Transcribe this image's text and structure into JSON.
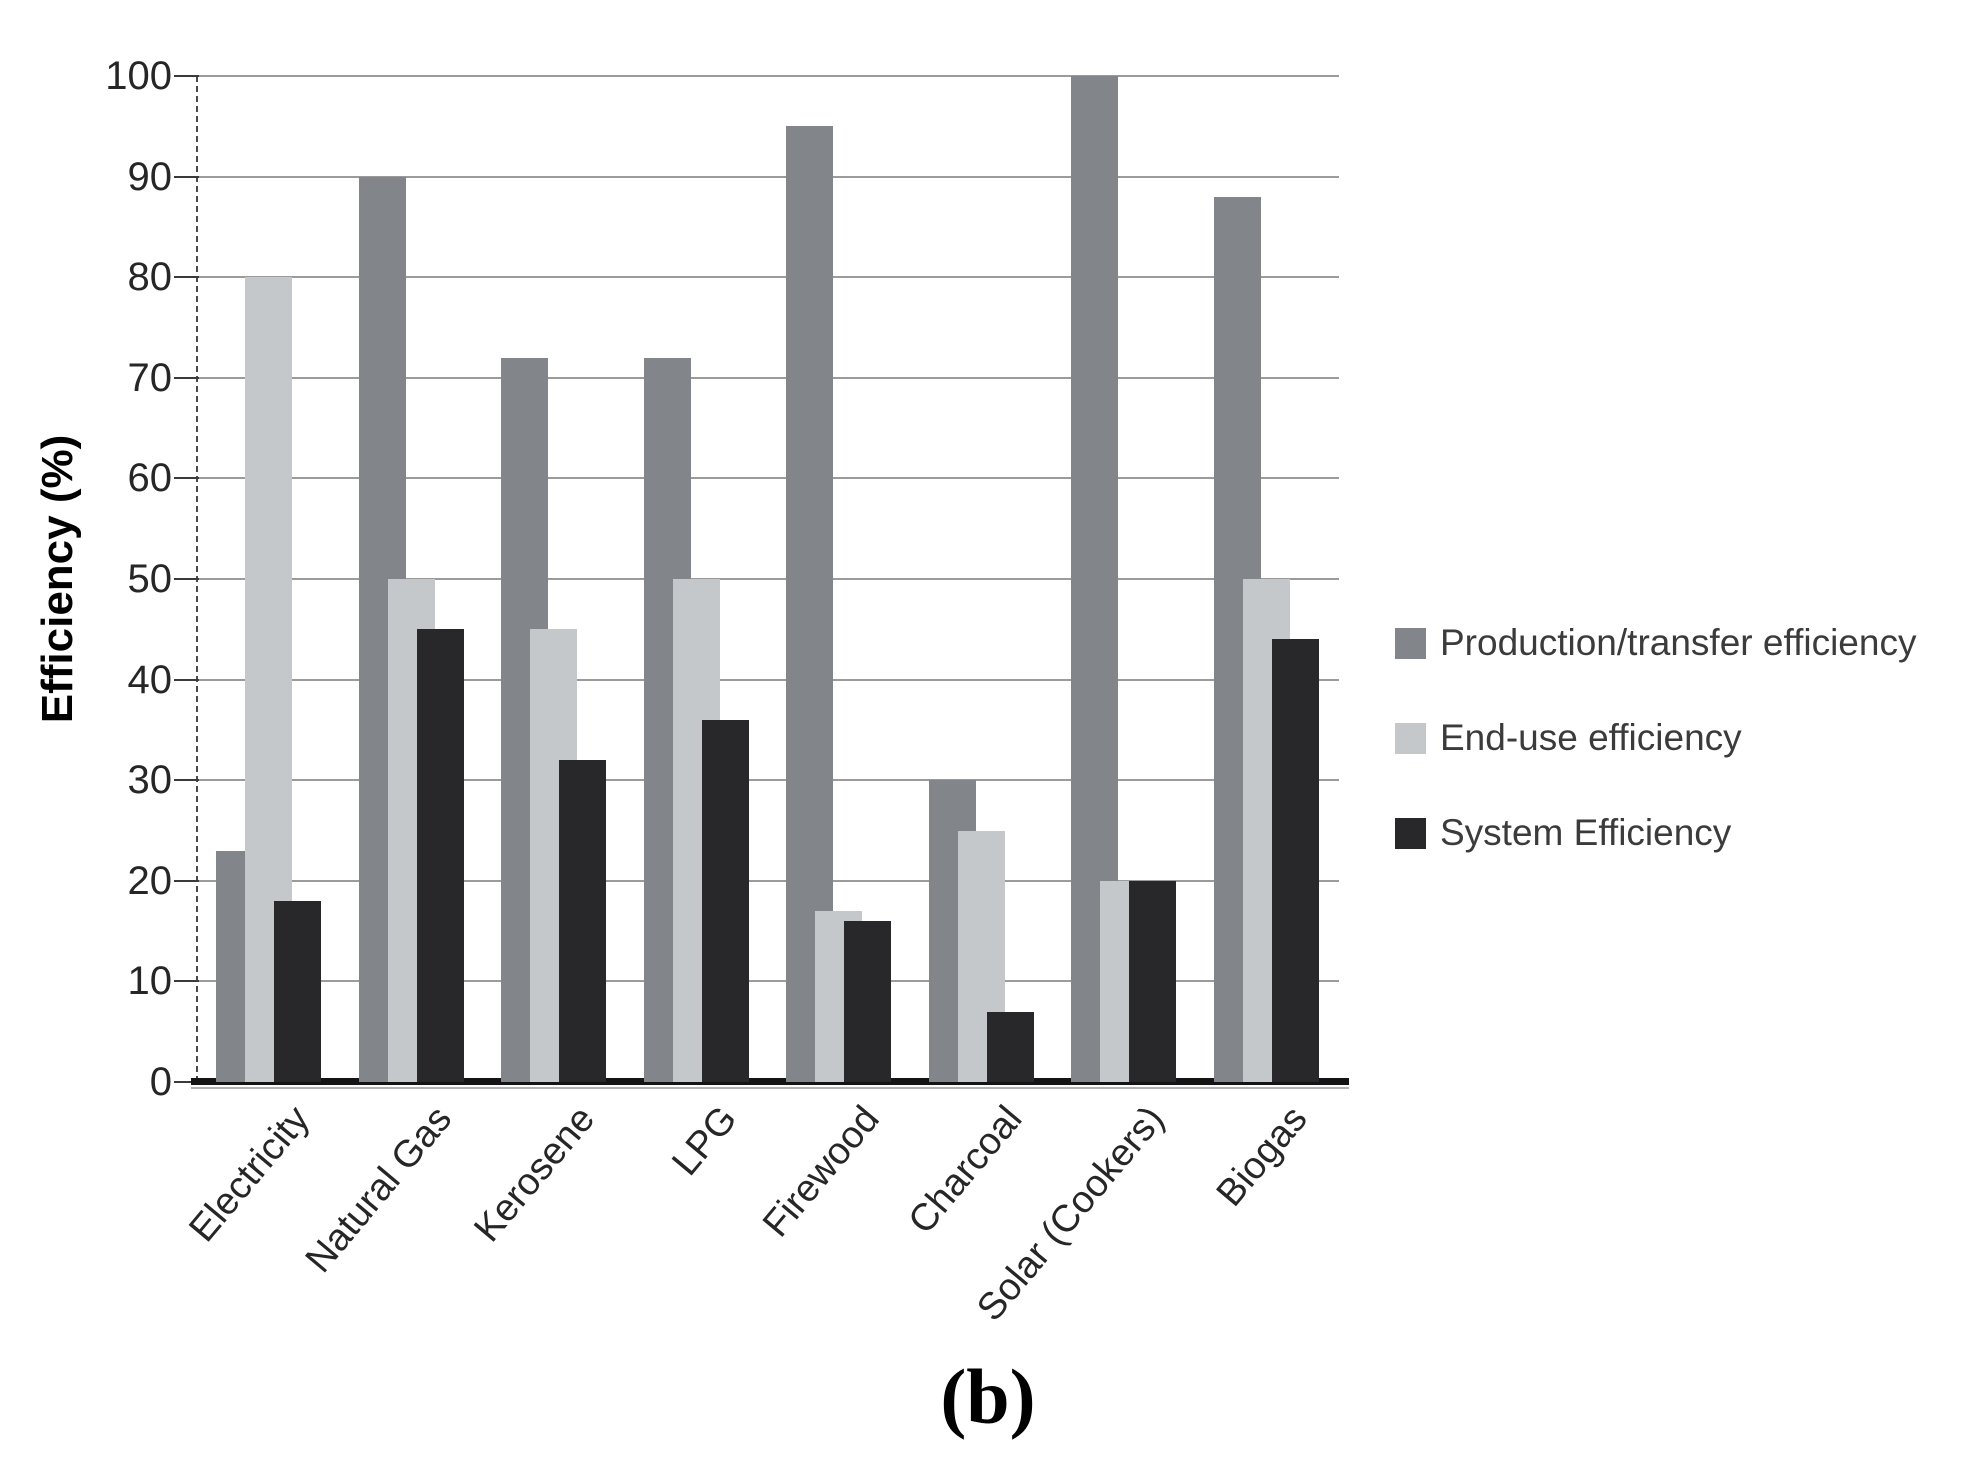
{
  "figure": {
    "caption": "(b)"
  },
  "chart_data": {
    "type": "bar",
    "title": "",
    "xlabel": "",
    "ylabel": "Efficiency (%)",
    "ylim": [
      0,
      100
    ],
    "yticks": [
      0,
      10,
      20,
      30,
      40,
      50,
      60,
      70,
      80,
      90,
      100
    ],
    "grid": "horizontal gridlines every 10",
    "legend_position": "right-center",
    "bar_layout": "clustered, 3 bars per category with ~35% overlap",
    "categories": [
      "Electricity",
      "Natural Gas",
      "Kerosene",
      "LPG",
      "Firewood",
      "Charcoal",
      "Solar (Cookers)",
      "Biogas"
    ],
    "series": [
      {
        "name": "Production/transfer efficiency",
        "color": "#82858a",
        "values": [
          23,
          90,
          72,
          72,
          95,
          30,
          100,
          88
        ]
      },
      {
        "name": "End-use efficiency",
        "color": "#c5c8ca",
        "values": [
          80,
          50,
          45,
          50,
          17,
          25,
          20,
          50
        ]
      },
      {
        "name": "System Efficiency",
        "color": "#28272a",
        "values": [
          18,
          45,
          32,
          36,
          16,
          7,
          20,
          44
        ]
      }
    ]
  },
  "style": {
    "gridline_color": "#9b9b9b",
    "axis_color": "#141414",
    "axis_underline_color": "#b3b3b3",
    "axis_dash_color": "#4a4a4a",
    "tick_color": "#3a3a3a",
    "tick_text_color": "#262626",
    "y_title_color": "#1b1b1b",
    "legend_text_color": "#3b3b3b",
    "background": "#ffffff"
  }
}
